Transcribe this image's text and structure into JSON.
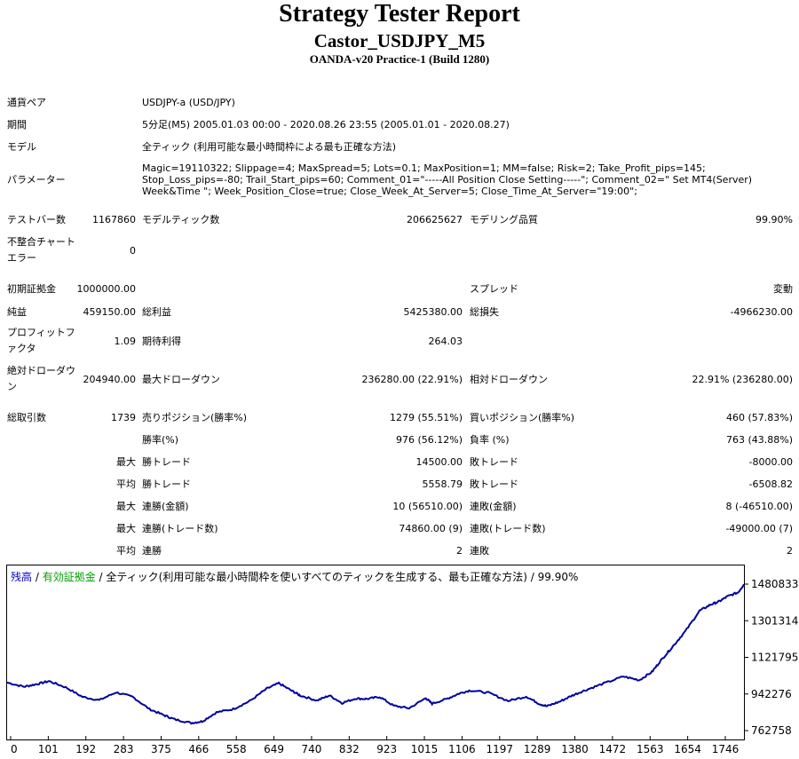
{
  "header": {
    "title": "Strategy Tester Report",
    "ea_name": "Castor_USDJPY_M5",
    "server": "OANDA-v20 Practice-1 (Build 1280)"
  },
  "settings": {
    "symbol_label": "通貨ペア",
    "symbol_value": "USDJPY-a (USD/JPY)",
    "period_label": "期間",
    "period_value": "5分足(M5) 2005.01.03 00:00 - 2020.08.26 23:55 (2005.01.01 - 2020.08.27)",
    "model_label": "モデル",
    "model_value": "全ティック (利用可能な最小時間枠による最も正確な方法)",
    "params_label": "パラメーター",
    "params_value": "Magic=19110322; Slippage=4; MaxSpread=5; Lots=0.1; MaxPosition=1; MM=false; Risk=2; Take_Profit_pips=145; Stop_Loss_pips=-80; Trail_Start_pips=60; Comment_01=\"-----All Position Close Setting-----\"; Comment_02=\" Set MT4(Server) Week&Time \"; Week_Position_Close=true; Close_Week_At_Server=5; Close_Time_At_Server=\"19:00\";"
  },
  "stats": {
    "bars_label": "テストバー数",
    "bars_value": "1167860",
    "ticks_label": "モデルティック数",
    "ticks_value": "206625627",
    "quality_label": "モデリング品質",
    "quality_value": "99.90%",
    "mismatch_label": "不整合チャートエラー",
    "mismatch_value": "0",
    "deposit_label": "初期証拠金",
    "deposit_value": "1000000.00",
    "spread_label": "スプレッド",
    "spread_value": "変動",
    "net_label": "純益",
    "net_value": "459150.00",
    "gross_profit_label": "総利益",
    "gross_profit_value": "5425380.00",
    "gross_loss_label": "総損失",
    "gross_loss_value": "-4966230.00",
    "pf_label": "プロフィットファクタ",
    "pf_value": "1.09",
    "expected_label": "期待利得",
    "expected_value": "264.03",
    "abs_dd_label": "絶対ドローダウン",
    "abs_dd_value": "204940.00",
    "max_dd_label": "最大ドローダウン",
    "max_dd_value": "236280.00 (22.91%)",
    "rel_dd_label": "相対ドローダウン",
    "rel_dd_value": "22.91% (236280.00)",
    "trades_label": "総取引数",
    "trades_value": "1739",
    "short_label": "売りポジション(勝率%)",
    "short_value": "1279 (55.51%)",
    "long_label": "買いポジション(勝率%)",
    "long_value": "460 (57.83%)",
    "win_rate_label": "勝率(%)",
    "win_rate_value": "976 (56.12%)",
    "loss_rate_label": "負率 (%)",
    "loss_rate_value": "763 (43.88%)",
    "max_label": "最大",
    "avg_label": "平均",
    "largest_win_label": "勝トレード",
    "largest_win_value": "14500.00",
    "largest_loss_label": "敗トレード",
    "largest_loss_value": "-8000.00",
    "avg_win_label": "勝トレード",
    "avg_win_value": "5558.79",
    "avg_loss_label": "敗トレード",
    "avg_loss_value": "-6508.82",
    "max_cons_wins_label": "連勝(金額)",
    "max_cons_wins_value": "10 (56510.00)",
    "max_cons_losses_label": "連敗(金額)",
    "max_cons_losses_value": "8 (-46510.00)",
    "max_cons_profit_label": "連勝(トレード数)",
    "max_cons_profit_value": "74860.00 (9)",
    "max_cons_loss_label": "連敗(トレード数)",
    "max_cons_loss_value": "-49000.00 (7)",
    "avg_cons_wins_label": "連勝",
    "avg_cons_wins_value": "2",
    "avg_cons_losses_label": "連敗",
    "avg_cons_losses_value": "2"
  },
  "chart_data": {
    "type": "line",
    "legend": {
      "balance": "残高",
      "sep1": " / ",
      "equity": "有効証拠金",
      "sep2": " / 全ティック(利用可能な最小時間枠を使いすべてのティックを生成する、最も正確な方法) / 99.90%"
    },
    "colors": {
      "balance": "#0000cc",
      "equity": "#00a000",
      "line": "#00009c"
    },
    "x_ticks": [
      "0",
      "101",
      "192",
      "283",
      "375",
      "466",
      "558",
      "649",
      "740",
      "832",
      "923",
      "1015",
      "1106",
      "1197",
      "1289",
      "1380",
      "1472",
      "1563",
      "1654",
      "1746"
    ],
    "y_ticks": [
      "1480833",
      "1301314",
      "1121795",
      "942276",
      "762758"
    ],
    "xlim": [
      0,
      1760
    ],
    "ylim": [
      762758,
      1480833
    ],
    "series": [
      {
        "x": [
          0,
          40,
          70,
          100,
          140,
          180,
          220,
          260,
          300,
          340,
          375,
          400,
          440,
          466,
          500,
          540,
          580,
          620,
          649,
          680,
          700,
          740,
          770,
          800,
          832,
          860,
          890,
          923,
          960,
          1000,
          1015,
          1050,
          1080,
          1106,
          1150,
          1197,
          1240,
          1270,
          1289,
          1320,
          1350,
          1380,
          1420,
          1472,
          1510,
          1540,
          1563,
          1590,
          1620,
          1654,
          1680,
          1700,
          1720,
          1746,
          1760
        ],
        "y": [
          998000,
          978000,
          990000,
          1005000,
          975000,
          928000,
          912000,
          950000,
          928000,
          868000,
          838000,
          818000,
          800000,
          808000,
          852000,
          868000,
          908000,
          968000,
          995000,
          958000,
          935000,
          910000,
          935000,
          898000,
          920000,
          918000,
          928000,
          885000,
          872000,
          922000,
          895000,
          918000,
          945000,
          960000,
          948000,
          908000,
          930000,
          895000,
          882000,
          905000,
          935000,
          960000,
          990000,
          1028000,
          1010000,
          1050000,
          1110000,
          1175000,
          1250000,
          1350000,
          1380000,
          1395000,
          1420000,
          1440000,
          1480000
        ]
      }
    ]
  }
}
